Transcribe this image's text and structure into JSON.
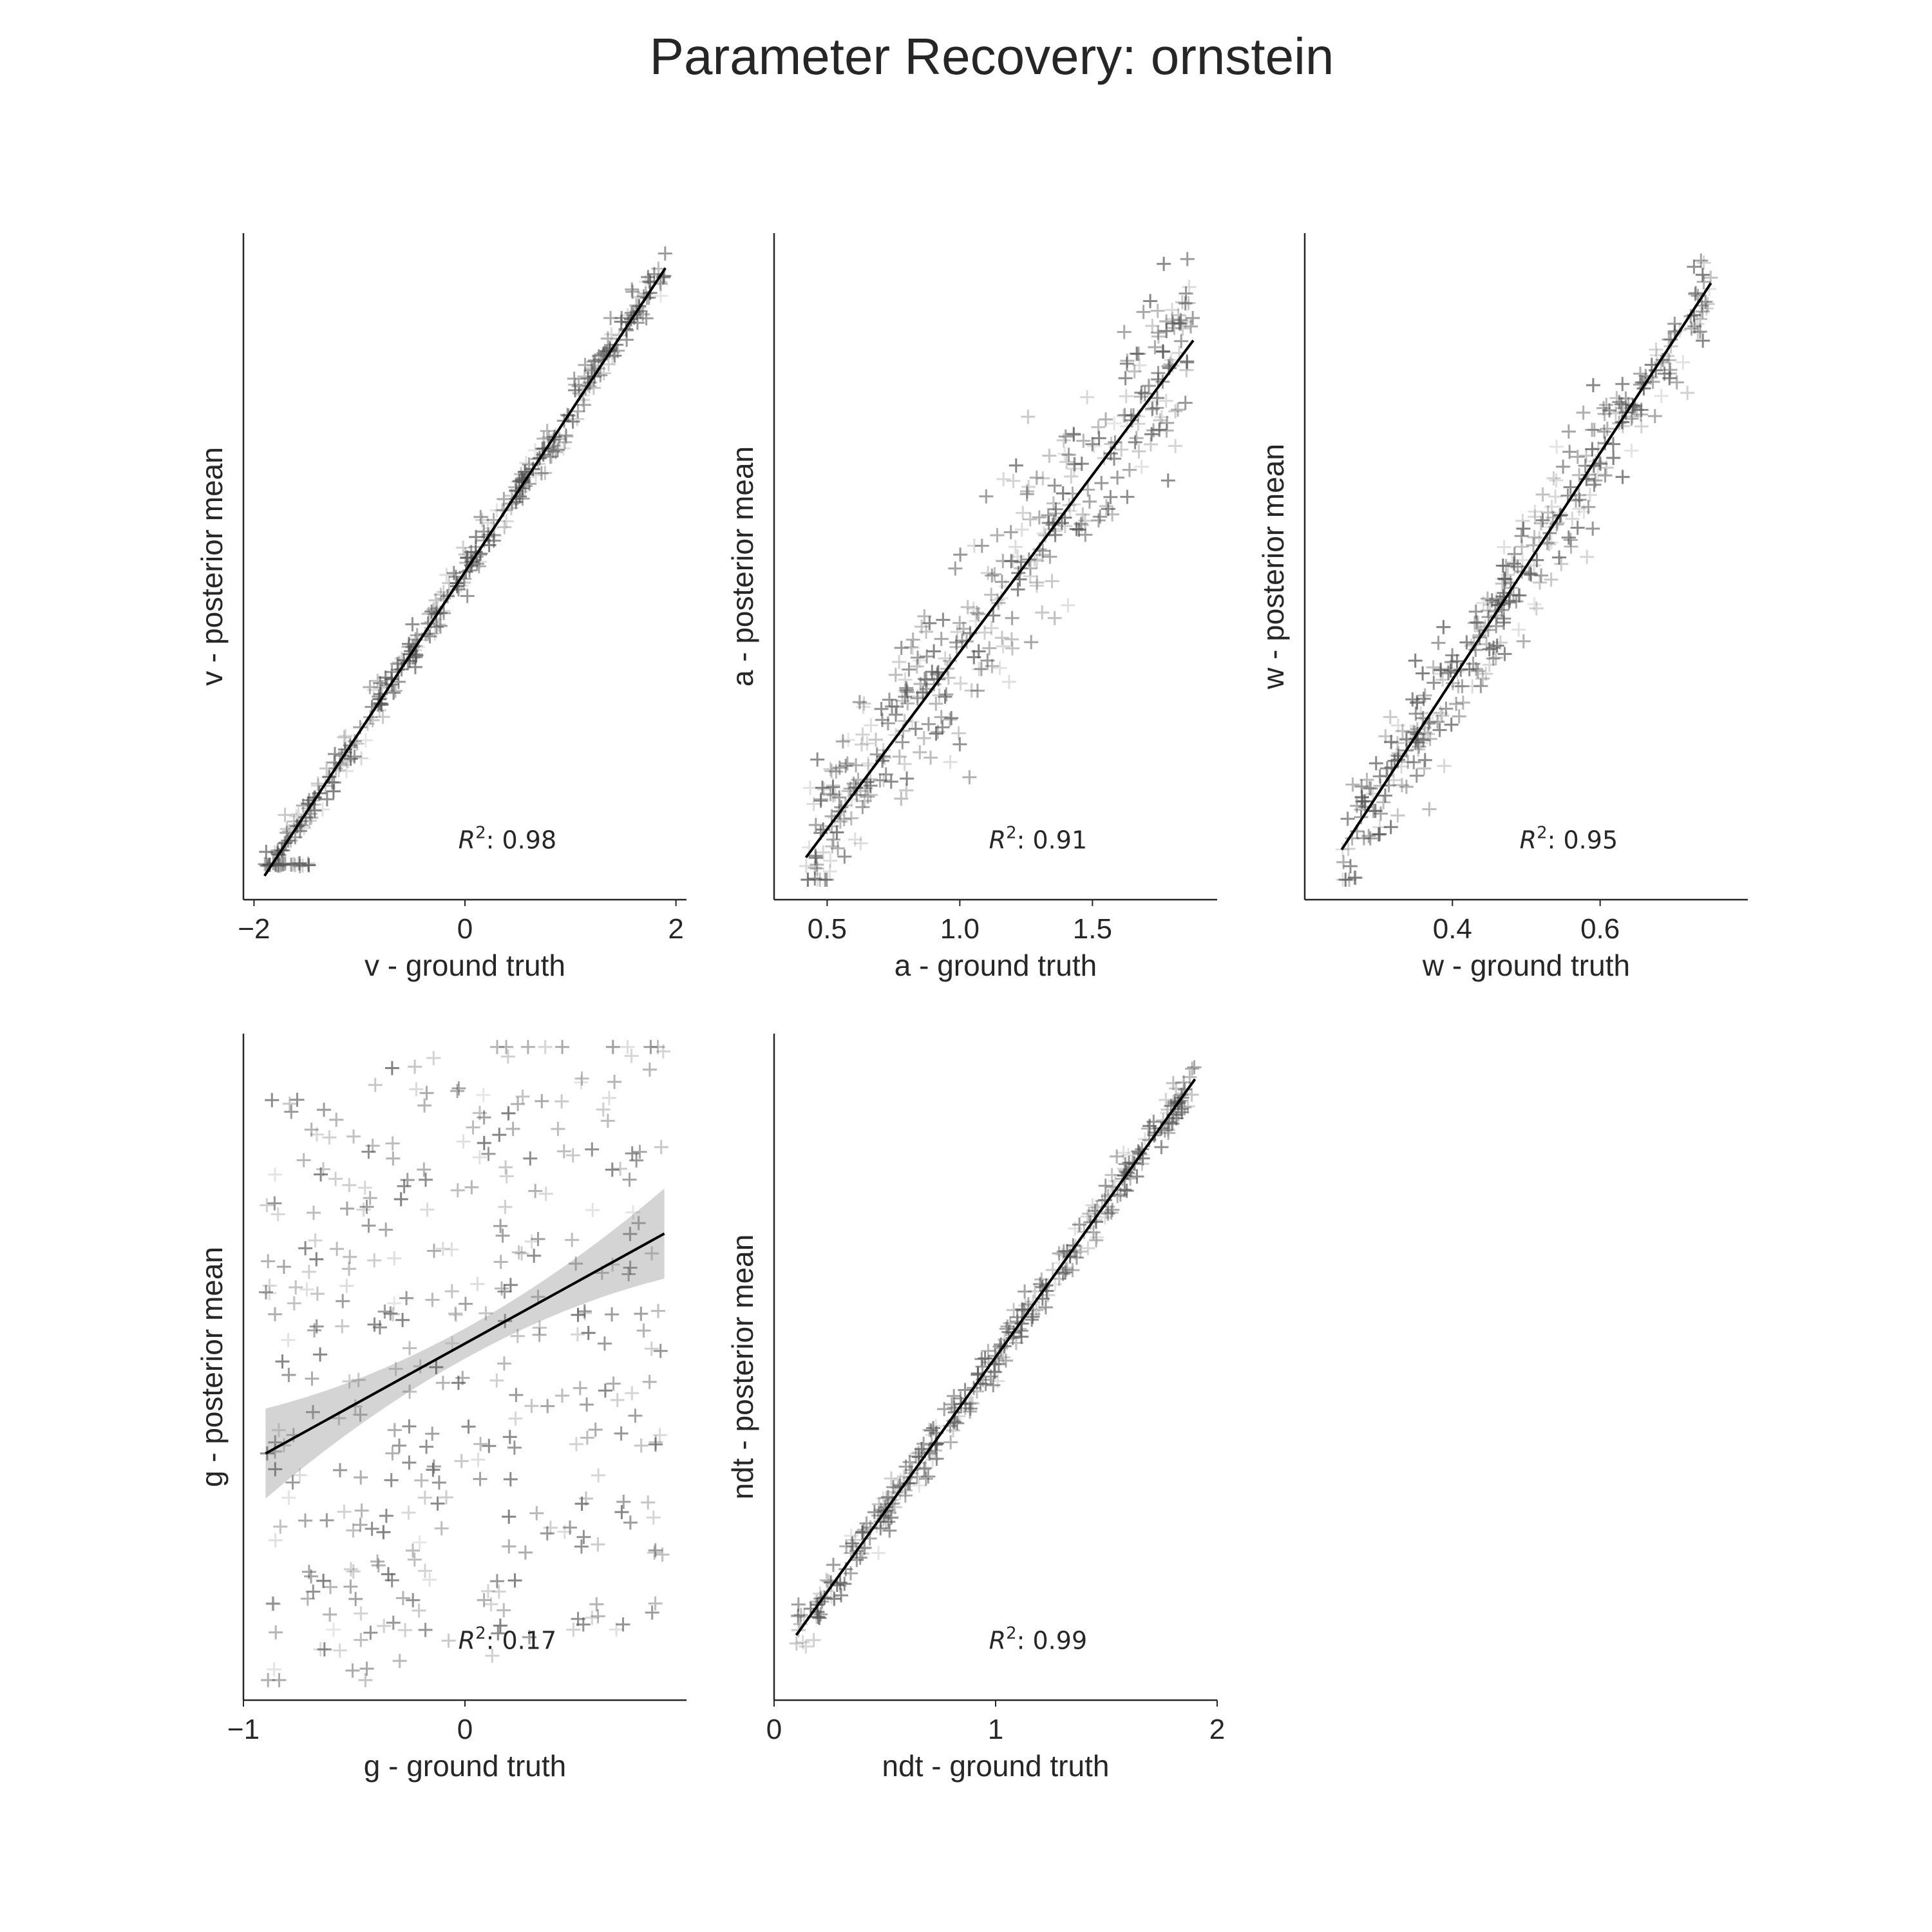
{
  "figure": {
    "title": "Parameter Recovery: ornstein"
  },
  "chart_data": [
    {
      "type": "scatter",
      "param": "v",
      "xlabel": "v - ground truth",
      "ylabel": "v - posterior mean",
      "xlim": [
        -2.1,
        2.1
      ],
      "ylim": [
        -2.0,
        2.2
      ],
      "xticks": [
        -2,
        0,
        2
      ],
      "xtick_labels": [
        "−2",
        "0",
        "2"
      ],
      "grid": false,
      "r2_label": "0.98",
      "r2": 0.98,
      "fit_line": {
        "x": [
          -1.9,
          1.9
        ],
        "y": [
          -1.85,
          1.98
        ]
      },
      "scatter_points": 380,
      "noise": 0.07,
      "floor": -1.78,
      "floor_count": 22,
      "marker": "+",
      "colors": {
        "marker": "#555555",
        "fit": "#000000"
      }
    },
    {
      "type": "scatter",
      "param": "a",
      "xlabel": "a - ground truth",
      "ylabel": "a - posterior mean",
      "xlim": [
        0.3,
        1.97
      ],
      "ylim": [
        0.28,
        2.02
      ],
      "xticks": [
        0.5,
        1.0,
        1.5
      ],
      "xtick_labels": [
        "0.5",
        "1.0",
        "1.5"
      ],
      "grid": false,
      "r2_label": "0.91",
      "r2": 0.91,
      "fit_line": {
        "x": [
          0.42,
          1.88
        ],
        "y": [
          0.39,
          1.74
        ]
      },
      "scatter_points": 420,
      "noise": 0.12,
      "marker": "+",
      "colors": {
        "marker": "#555555",
        "fit": "#000000"
      }
    },
    {
      "type": "scatter",
      "param": "w",
      "xlabel": "w - ground truth",
      "ylabel": "w - posterior mean",
      "xlim": [
        0.2,
        0.8
      ],
      "ylim": [
        0.2,
        0.8
      ],
      "xticks": [
        0.4,
        0.6
      ],
      "xtick_labels": [
        "0.4",
        "0.6"
      ],
      "grid": false,
      "r2_label": "0.95",
      "r2": 0.95,
      "fit_line": {
        "x": [
          0.25,
          0.75
        ],
        "y": [
          0.245,
          0.755
        ]
      },
      "scatter_points": 380,
      "noise": 0.025,
      "marker": "+",
      "colors": {
        "marker": "#555555",
        "fit": "#000000"
      }
    },
    {
      "type": "scatter",
      "param": "g",
      "xlabel": "g - ground truth",
      "ylabel": "g - posterior mean",
      "xlim": [
        -1.0,
        1.0
      ],
      "ylim": [
        -1.0,
        1.0
      ],
      "xticks": [
        -1,
        0
      ],
      "xtick_labels": [
        "−1",
        "0"
      ],
      "grid": false,
      "r2_label": "0.17",
      "r2": 0.17,
      "fit_line": {
        "x": [
          -0.9,
          0.9
        ],
        "y": [
          -0.26,
          0.4
        ]
      },
      "confidence_band": true,
      "scatter_points": 360,
      "noise": 0.5,
      "marker": "+",
      "colors": {
        "marker": "#555555",
        "fit": "#000000",
        "band": "#bdbdbd"
      }
    },
    {
      "type": "scatter",
      "param": "ndt",
      "xlabel": "ndt - ground truth",
      "ylabel": "ndt - posterior mean",
      "xlim": [
        0.0,
        2.0
      ],
      "ylim": [
        0.0,
        2.05
      ],
      "xticks": [
        0,
        1,
        2
      ],
      "xtick_labels": [
        "0",
        "1",
        "2"
      ],
      "grid": false,
      "r2_label": "0.99",
      "r2": 0.99,
      "fit_line": {
        "x": [
          0.1,
          1.9
        ],
        "y": [
          0.2,
          1.91
        ]
      },
      "scatter_points": 360,
      "noise": 0.035,
      "marker": "+",
      "colors": {
        "marker": "#555555",
        "fit": "#000000"
      }
    }
  ]
}
